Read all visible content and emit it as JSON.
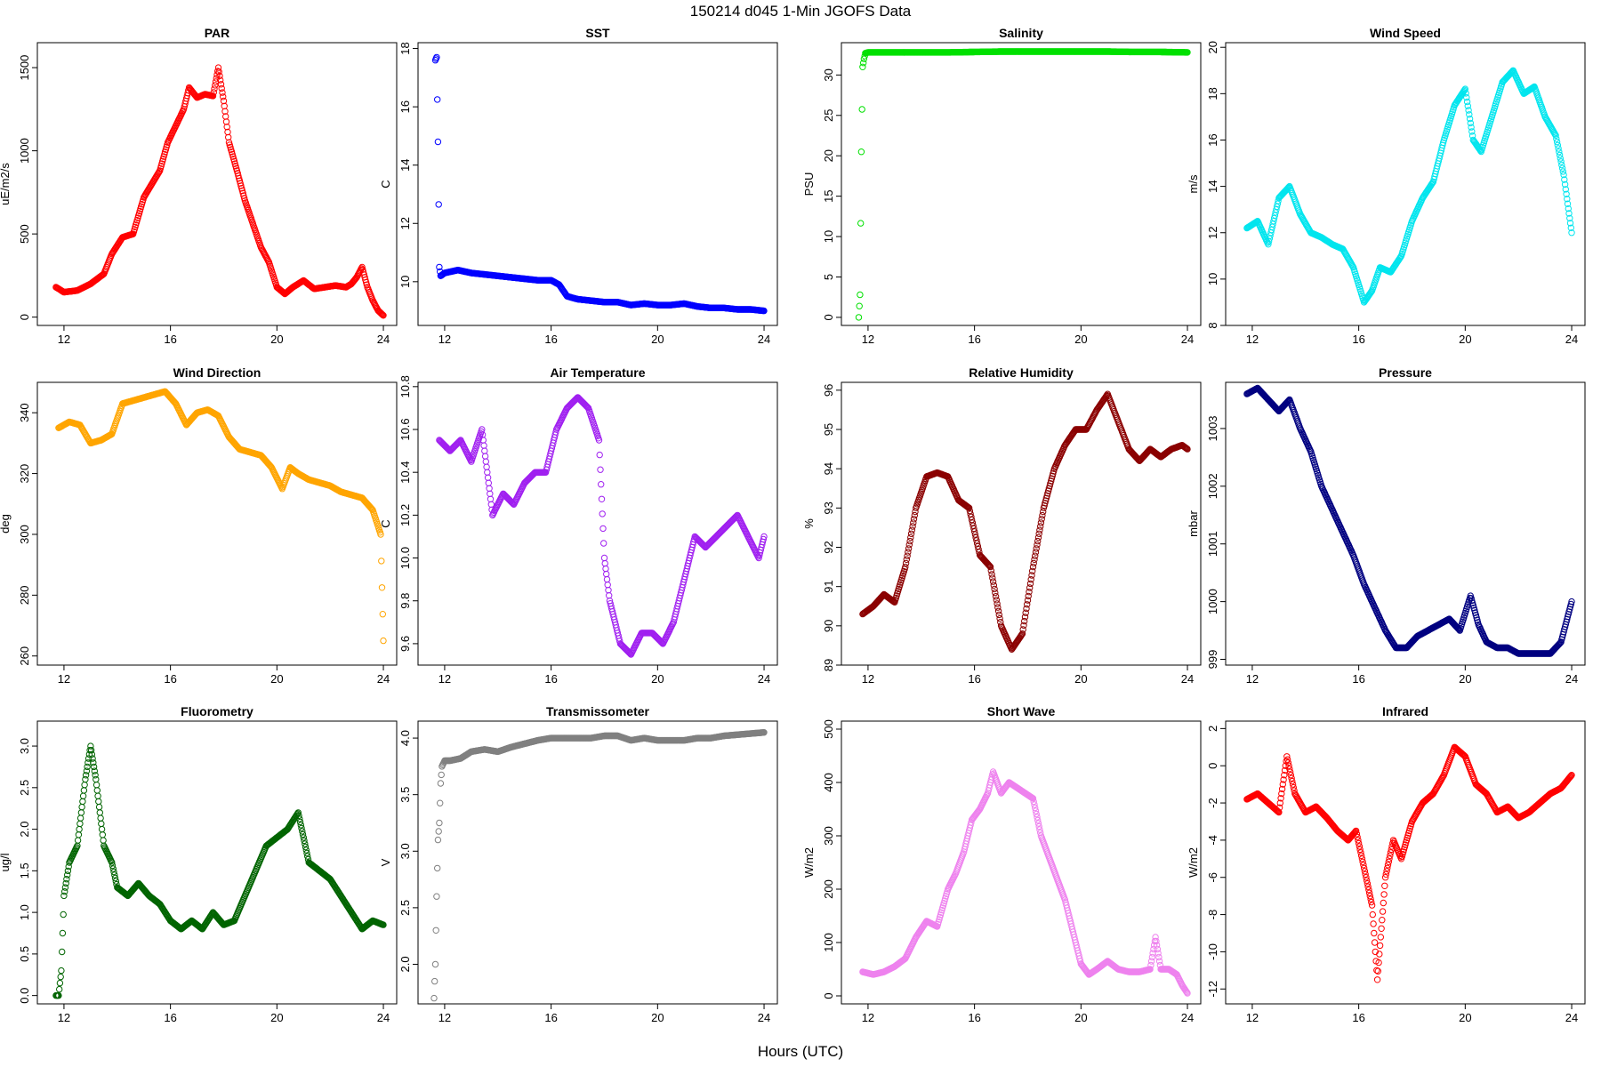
{
  "title": "150214   d045   1-Min  JGOFS Data",
  "xlabel": "Hours (UTC)",
  "chart_data": [
    {
      "type": "scatter",
      "title": "PAR",
      "ylabel": "uE/m2/s",
      "color": "#ff0000",
      "xlim": [
        11,
        24.5
      ],
      "ylim": [
        -50,
        1650
      ],
      "xticks": [
        12,
        16,
        20,
        24
      ],
      "yticks": [
        0,
        500,
        1000,
        1500
      ],
      "x": [
        11.7,
        12.0,
        12.5,
        13.0,
        13.5,
        13.8,
        14.2,
        14.6,
        15.0,
        15.3,
        15.6,
        15.9,
        16.2,
        16.5,
        16.7,
        17.0,
        17.3,
        17.6,
        17.8,
        18.0,
        18.2,
        18.5,
        18.8,
        19.1,
        19.4,
        19.7,
        20.0,
        20.3,
        20.6,
        21.0,
        21.4,
        21.8,
        22.2,
        22.6,
        22.8,
        23.0,
        23.2,
        23.4,
        23.6,
        23.8,
        24.0
      ],
      "y": [
        180,
        150,
        160,
        200,
        260,
        380,
        480,
        500,
        720,
        800,
        880,
        1050,
        1150,
        1250,
        1380,
        1320,
        1340,
        1330,
        1500,
        1300,
        1050,
        880,
        700,
        560,
        420,
        330,
        180,
        140,
        180,
        220,
        170,
        180,
        190,
        180,
        200,
        240,
        300,
        180,
        100,
        40,
        10
      ]
    },
    {
      "type": "scatter",
      "title": "SST",
      "ylabel": "C",
      "color": "#0000ff",
      "xlim": [
        11,
        24.5
      ],
      "ylim": [
        8.5,
        18.2
      ],
      "xticks": [
        12,
        16,
        20,
        24
      ],
      "yticks": [
        10,
        12,
        14,
        16,
        18
      ],
      "x": [
        11.65,
        11.7,
        11.75,
        11.8,
        11.85,
        12.0,
        12.5,
        13.0,
        13.5,
        14.0,
        14.5,
        15.0,
        15.5,
        16.0,
        16.3,
        16.6,
        17.0,
        17.5,
        18.0,
        18.5,
        19.0,
        19.5,
        20.0,
        20.5,
        21.0,
        21.5,
        22.0,
        22.5,
        23.0,
        23.5,
        24.0
      ],
      "y": [
        17.6,
        17.7,
        14.8,
        10.5,
        10.2,
        10.3,
        10.4,
        10.3,
        10.25,
        10.2,
        10.15,
        10.1,
        10.05,
        10.05,
        9.9,
        9.5,
        9.4,
        9.35,
        9.3,
        9.3,
        9.2,
        9.25,
        9.2,
        9.2,
        9.25,
        9.15,
        9.1,
        9.1,
        9.05,
        9.05,
        9.0
      ]
    },
    {
      "type": "scatter",
      "title": "Salinity",
      "ylabel": "PSU",
      "color": "#00e000",
      "xlim": [
        11,
        24.5
      ],
      "ylim": [
        -1,
        34
      ],
      "xticks": [
        12,
        16,
        20,
        24
      ],
      "yticks": [
        0,
        5,
        10,
        15,
        20,
        25,
        30
      ],
      "x": [
        11.65,
        11.7,
        11.75,
        11.8,
        11.85,
        11.9,
        12.0,
        13.0,
        14.0,
        15.0,
        16.0,
        17.0,
        18.0,
        19.0,
        20.0,
        21.0,
        22.0,
        23.0,
        24.0
      ],
      "y": [
        0,
        2.8,
        20.5,
        31.0,
        32.0,
        32.7,
        32.8,
        32.8,
        32.8,
        32.8,
        32.85,
        32.9,
        32.9,
        32.9,
        32.9,
        32.9,
        32.85,
        32.85,
        32.8
      ]
    },
    {
      "type": "scatter",
      "title": "Wind Speed",
      "ylabel": "m/s",
      "color": "#00e5ee",
      "xlim": [
        11,
        24.5
      ],
      "ylim": [
        8,
        20.2
      ],
      "xticks": [
        12,
        16,
        20,
        24
      ],
      "yticks": [
        8,
        10,
        12,
        14,
        16,
        18,
        20
      ],
      "x": [
        11.8,
        12.2,
        12.6,
        13.0,
        13.4,
        13.8,
        14.2,
        14.6,
        15.0,
        15.4,
        15.8,
        16.2,
        16.5,
        16.8,
        17.2,
        17.6,
        18.0,
        18.4,
        18.8,
        19.2,
        19.6,
        20.0,
        20.3,
        20.6,
        21.0,
        21.4,
        21.8,
        22.2,
        22.6,
        23.0,
        23.4,
        23.7,
        24.0
      ],
      "y": [
        12.2,
        12.5,
        11.5,
        13.5,
        14.0,
        12.8,
        12.0,
        11.8,
        11.5,
        11.3,
        10.5,
        9.0,
        9.5,
        10.5,
        10.3,
        11.0,
        12.5,
        13.5,
        14.2,
        16.0,
        17.5,
        18.2,
        16.0,
        15.5,
        17.0,
        18.5,
        19.0,
        18.0,
        18.3,
        17.0,
        16.2,
        14.5,
        12.0
      ]
    },
    {
      "type": "scatter",
      "title": "Wind Direction",
      "ylabel": "deg",
      "color": "#ffa500",
      "xlim": [
        11,
        24.5
      ],
      "ylim": [
        257,
        350
      ],
      "xticks": [
        12,
        16,
        20,
        24
      ],
      "yticks": [
        260,
        280,
        300,
        320,
        340
      ],
      "x": [
        11.8,
        12.2,
        12.6,
        13.0,
        13.4,
        13.8,
        14.2,
        14.6,
        15.0,
        15.4,
        15.8,
        16.2,
        16.6,
        17.0,
        17.4,
        17.8,
        18.2,
        18.6,
        19.0,
        19.4,
        19.8,
        20.2,
        20.5,
        20.8,
        21.2,
        21.6,
        22.0,
        22.4,
        22.8,
        23.2,
        23.6,
        23.9,
        24.0
      ],
      "y": [
        335,
        337,
        336,
        330,
        331,
        333,
        343,
        344,
        345,
        346,
        347,
        343,
        336,
        340,
        341,
        339,
        332,
        328,
        327,
        326,
        322,
        315,
        322,
        320,
        318,
        317,
        316,
        314,
        313,
        312,
        308,
        300,
        265
      ]
    },
    {
      "type": "scatter",
      "title": "Air Temperature",
      "ylabel": "C",
      "color": "#a020f0",
      "xlim": [
        11,
        24.5
      ],
      "ylim": [
        9.5,
        10.82
      ],
      "xticks": [
        12,
        16,
        20,
        24
      ],
      "yticks": [
        9.6,
        9.8,
        10.0,
        10.2,
        10.4,
        10.6,
        10.8
      ],
      "x": [
        11.8,
        12.2,
        12.6,
        13.0,
        13.4,
        13.8,
        14.2,
        14.6,
        15.0,
        15.4,
        15.8,
        16.2,
        16.6,
        17.0,
        17.4,
        17.8,
        18.0,
        18.2,
        18.6,
        19.0,
        19.4,
        19.8,
        20.2,
        20.6,
        21.0,
        21.4,
        21.8,
        22.2,
        22.6,
        23.0,
        23.4,
        23.8,
        24.0
      ],
      "y": [
        10.55,
        10.5,
        10.55,
        10.45,
        10.6,
        10.2,
        10.3,
        10.25,
        10.35,
        10.4,
        10.4,
        10.6,
        10.7,
        10.75,
        10.7,
        10.55,
        10.0,
        9.8,
        9.6,
        9.55,
        9.65,
        9.65,
        9.6,
        9.7,
        9.9,
        10.1,
        10.05,
        10.1,
        10.15,
        10.2,
        10.1,
        10.0,
        10.1
      ]
    },
    {
      "type": "scatter",
      "title": "Relative Humidity",
      "ylabel": "%",
      "color": "#8b0000",
      "xlim": [
        11,
        24.5
      ],
      "ylim": [
        89,
        96.2
      ],
      "xticks": [
        12,
        16,
        20,
        24
      ],
      "yticks": [
        89,
        90,
        91,
        92,
        93,
        94,
        95,
        96
      ],
      "x": [
        11.8,
        12.2,
        12.6,
        13.0,
        13.4,
        13.8,
        14.2,
        14.6,
        15.0,
        15.4,
        15.8,
        16.2,
        16.6,
        17.0,
        17.4,
        17.8,
        18.2,
        18.6,
        19.0,
        19.4,
        19.8,
        20.2,
        20.6,
        21.0,
        21.4,
        21.8,
        22.2,
        22.6,
        23.0,
        23.4,
        23.8,
        24.0
      ],
      "y": [
        90.3,
        90.5,
        90.8,
        90.6,
        91.5,
        93.0,
        93.8,
        93.9,
        93.8,
        93.2,
        93.0,
        91.8,
        91.5,
        90.0,
        89.4,
        89.8,
        91.5,
        93.0,
        94.0,
        94.6,
        95.0,
        95.0,
        95.5,
        95.9,
        95.2,
        94.5,
        94.2,
        94.5,
        94.3,
        94.5,
        94.6,
        94.5
      ]
    },
    {
      "type": "scatter",
      "title": "Pressure",
      "ylabel": "mbar",
      "color": "#000080",
      "xlim": [
        11,
        24.5
      ],
      "ylim": [
        998.9,
        1003.8
      ],
      "xticks": [
        12,
        16,
        20,
        24
      ],
      "yticks": [
        999,
        1000,
        1001,
        1002,
        1003
      ],
      "x": [
        11.8,
        12.2,
        12.6,
        13.0,
        13.4,
        13.8,
        14.2,
        14.6,
        15.0,
        15.4,
        15.8,
        16.2,
        16.6,
        17.0,
        17.4,
        17.8,
        18.2,
        18.6,
        19.0,
        19.4,
        19.8,
        20.2,
        20.5,
        20.8,
        21.2,
        21.6,
        22.0,
        22.4,
        22.8,
        23.2,
        23.6,
        24.0
      ],
      "y": [
        1003.6,
        1003.7,
        1003.5,
        1003.3,
        1003.5,
        1003.0,
        1002.6,
        1002.0,
        1001.6,
        1001.2,
        1000.8,
        1000.3,
        999.9,
        999.5,
        999.2,
        999.2,
        999.4,
        999.5,
        999.6,
        999.7,
        999.5,
        1000.1,
        999.6,
        999.3,
        999.2,
        999.2,
        999.1,
        999.1,
        999.1,
        999.1,
        999.3,
        1000.0
      ]
    },
    {
      "type": "scatter",
      "title": "Fluorometry",
      "ylabel": "ug/l",
      "color": "#006400",
      "xlim": [
        11,
        24.5
      ],
      "ylim": [
        -0.1,
        3.3
      ],
      "xticks": [
        12,
        16,
        20,
        24
      ],
      "yticks": [
        0.0,
        0.5,
        1.0,
        1.5,
        2.0,
        2.5,
        3.0
      ],
      "x": [
        11.7,
        11.8,
        11.9,
        12.0,
        12.2,
        12.5,
        12.8,
        13.0,
        13.2,
        13.5,
        13.8,
        14.0,
        14.4,
        14.8,
        15.2,
        15.6,
        16.0,
        16.4,
        16.8,
        17.2,
        17.6,
        18.0,
        18.4,
        18.8,
        19.2,
        19.6,
        20.0,
        20.4,
        20.8,
        21.2,
        21.6,
        22.0,
        22.4,
        22.8,
        23.2,
        23.6,
        24.0
      ],
      "y": [
        0.0,
        0.0,
        0.3,
        1.2,
        1.6,
        1.8,
        2.6,
        3.0,
        2.6,
        1.8,
        1.6,
        1.3,
        1.2,
        1.35,
        1.2,
        1.1,
        0.9,
        0.8,
        0.9,
        0.8,
        1.0,
        0.85,
        0.9,
        1.2,
        1.5,
        1.8,
        1.9,
        2.0,
        2.2,
        1.6,
        1.5,
        1.4,
        1.2,
        1.0,
        0.8,
        0.9,
        0.85
      ]
    },
    {
      "type": "scatter",
      "title": "Transmissometer",
      "ylabel": "V",
      "color": "#808080",
      "xlim": [
        11,
        24.5
      ],
      "ylim": [
        1.65,
        4.15
      ],
      "xticks": [
        12,
        16,
        20,
        24
      ],
      "yticks": [
        2.0,
        2.5,
        3.0,
        3.5,
        4.0
      ],
      "x": [
        11.6,
        11.65,
        11.7,
        11.75,
        11.8,
        11.85,
        11.9,
        12.0,
        12.2,
        12.6,
        13.0,
        13.5,
        14.0,
        14.5,
        15.0,
        15.5,
        16.0,
        16.5,
        17.0,
        17.5,
        18.0,
        18.5,
        19.0,
        19.5,
        20.0,
        20.5,
        21.0,
        21.5,
        22.0,
        22.5,
        23.0,
        23.5,
        24.0
      ],
      "y": [
        1.7,
        2.0,
        2.6,
        3.1,
        3.25,
        3.6,
        3.75,
        3.8,
        3.8,
        3.82,
        3.88,
        3.9,
        3.88,
        3.92,
        3.95,
        3.98,
        4.0,
        4.0,
        4.0,
        4.0,
        4.02,
        4.02,
        3.98,
        4.0,
        3.98,
        3.98,
        3.98,
        4.0,
        4.0,
        4.02,
        4.03,
        4.04,
        4.05
      ]
    },
    {
      "type": "scatter",
      "title": "Short Wave",
      "ylabel": "W/m2",
      "color": "#ee82ee",
      "xlim": [
        11,
        24.5
      ],
      "ylim": [
        -15,
        515
      ],
      "xticks": [
        12,
        16,
        20,
        24
      ],
      "yticks": [
        0,
        100,
        200,
        300,
        400,
        500
      ],
      "x": [
        11.8,
        12.2,
        12.6,
        13.0,
        13.4,
        13.8,
        14.2,
        14.6,
        15.0,
        15.3,
        15.6,
        15.9,
        16.2,
        16.5,
        16.7,
        17.0,
        17.3,
        17.6,
        17.9,
        18.2,
        18.5,
        18.8,
        19.1,
        19.4,
        19.7,
        20.0,
        20.3,
        20.6,
        21.0,
        21.4,
        21.8,
        22.2,
        22.6,
        22.8,
        23.0,
        23.3,
        23.6,
        23.8,
        24.0
      ],
      "y": [
        45,
        40,
        45,
        55,
        70,
        110,
        140,
        130,
        200,
        230,
        270,
        330,
        350,
        380,
        420,
        380,
        400,
        390,
        380,
        370,
        300,
        260,
        220,
        180,
        120,
        60,
        40,
        50,
        65,
        50,
        45,
        45,
        50,
        110,
        50,
        50,
        40,
        20,
        5
      ]
    },
    {
      "type": "scatter",
      "title": "Infrared",
      "ylabel": "W/m2",
      "color": "#ff0000",
      "xlim": [
        11,
        24.5
      ],
      "ylim": [
        -12.8,
        2.4
      ],
      "xticks": [
        12,
        16,
        20,
        24
      ],
      "yticks": [
        -12,
        -10,
        -8,
        -6,
        -4,
        -2,
        0,
        2
      ],
      "x": [
        11.8,
        12.2,
        12.6,
        13.0,
        13.3,
        13.6,
        14.0,
        14.4,
        14.8,
        15.2,
        15.6,
        15.9,
        16.2,
        16.5,
        16.7,
        17.0,
        17.3,
        17.6,
        18.0,
        18.4,
        18.8,
        19.2,
        19.6,
        20.0,
        20.4,
        20.8,
        21.2,
        21.6,
        22.0,
        22.4,
        22.8,
        23.2,
        23.6,
        24.0
      ],
      "y": [
        -1.8,
        -1.5,
        -2.0,
        -2.5,
        0.5,
        -1.5,
        -2.5,
        -2.2,
        -2.8,
        -3.5,
        -4.0,
        -3.5,
        -5.5,
        -7.5,
        -11.5,
        -6.0,
        -4.0,
        -5.0,
        -3.0,
        -2.0,
        -1.5,
        -0.5,
        1.0,
        0.5,
        -1.0,
        -1.5,
        -2.5,
        -2.2,
        -2.8,
        -2.5,
        -2.0,
        -1.5,
        -1.2,
        -0.5
      ]
    }
  ]
}
